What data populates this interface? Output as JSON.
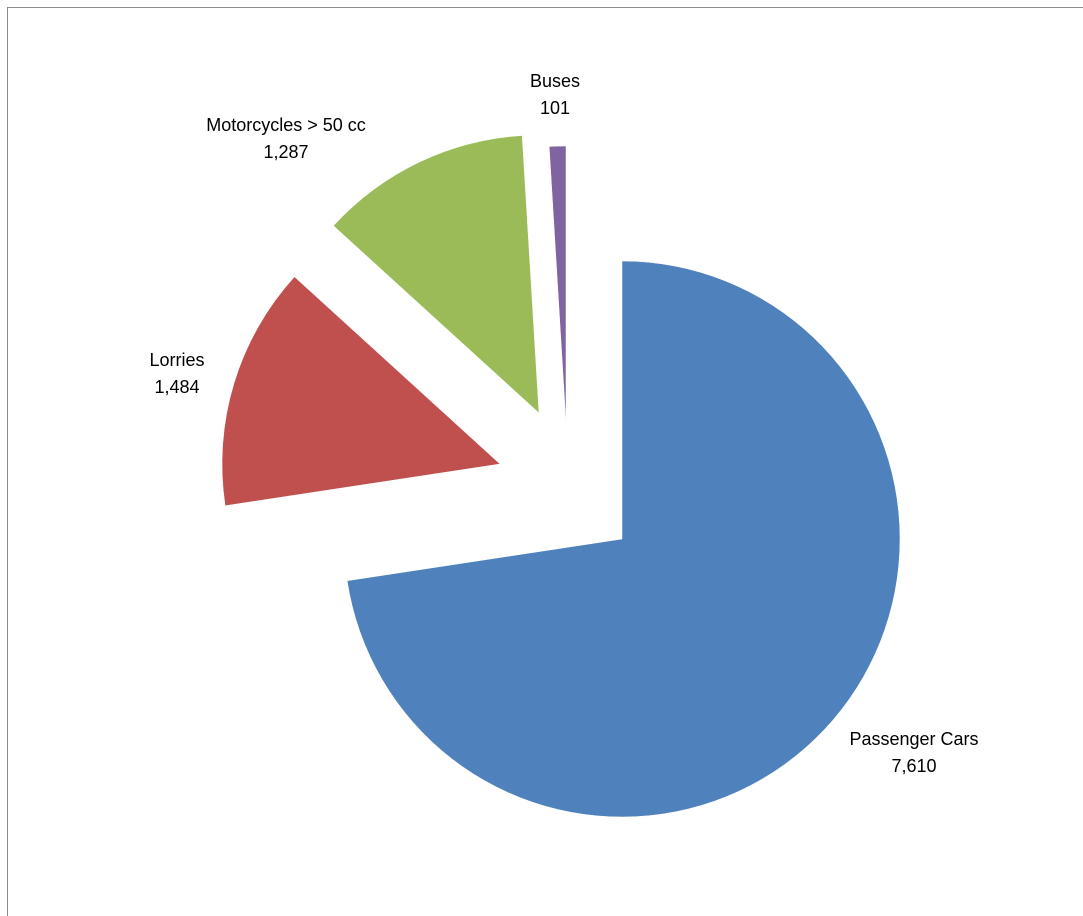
{
  "chart_data": {
    "type": "pie",
    "title": "",
    "exploded": true,
    "series": [
      {
        "name": "",
        "slices": [
          {
            "label": "Passenger Cars",
            "value": 7610,
            "value_text": "7,610",
            "color": "#4F81BD"
          },
          {
            "label": "Lorries",
            "value": 1484,
            "value_text": "1,484",
            "color": "#C0504D"
          },
          {
            "label": "Motorcycles > 50 cc",
            "value": 1287,
            "value_text": "1,287",
            "color": "#9BBB59"
          },
          {
            "label": "Buses",
            "value": 101,
            "value_text": "101",
            "color": "#8064A2"
          }
        ]
      }
    ],
    "legend": "none",
    "data_labels": "outside, category name and value"
  }
}
